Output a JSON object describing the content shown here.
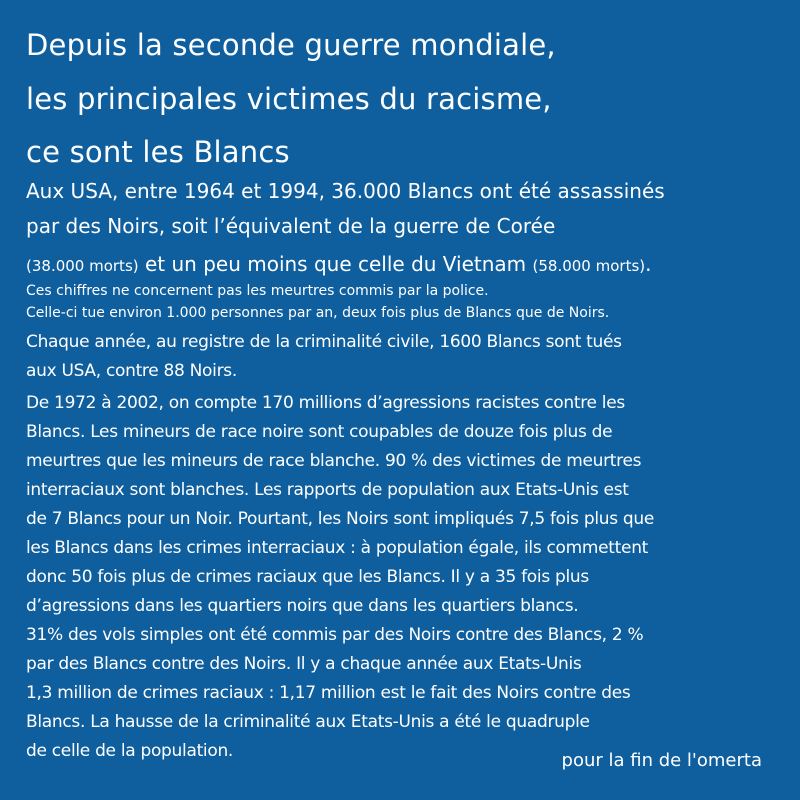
{
  "background_color": "#0f5f9f",
  "title_lines": [
    "Depuis la seconde guerre mondiale,",
    "les principales victimes du racisme,",
    "ce sont les Blancs"
  ],
  "subtitle_lines": [
    "Aux USA, entre 1964 et 1994, 36.000 Blancs ont été assassinés",
    "par des Noirs, soit l’équivalent de la guerre de Corée"
  ],
  "subtitle_line3": {
    "a": "(38.000 morts)",
    "b": " et un peu moins que celle du Vietnam ",
    "c": "(58.000 morts)",
    "d": "."
  },
  "note_lines": [
    "Ces chiffres ne concernent pas les meurtres commis par la police.",
    "Celle-ci tue environ 1.000 personnes par an,  deux fois plus de Blancs que de Noirs."
  ],
  "body_lines": [
    "Chaque année, au registre de la criminalité civile, 1600 Blancs sont tués",
    "aux USA, contre 88 Noirs.",
    "De 1972 à 2002, on compte 170 millions d’agressions racistes contre les",
    "Blancs. Les mineurs de race noire sont coupables de douze fois plus de",
    "meurtres que les mineurs de race blanche. 90 % des victimes de meurtres",
    "interraciaux sont blanches. Les rapports de population aux Etats-Unis est",
    "de 7 Blancs pour un Noir. Pourtant, les Noirs sont impliqués 7,5 fois plus que",
    "les Blancs dans les crimes interraciaux : à population égale, ils commettent",
    "donc 50 fois plus de crimes raciaux que les Blancs. Il y a 35 fois plus",
    "d’agressions dans les quartiers noirs que dans les quartiers blancs.",
    "31% des vols simples ont été commis par des Noirs contre des Blancs, 2 %",
    "par des Blancs contre des Noirs. Il y a chaque année aux Etats-Unis",
    "1,3 million de crimes raciaux : 1,17 million est le fait des Noirs contre des",
    "Blancs. La hausse de la criminalité aux Etats-Unis a été le quadruple",
    "de celle de la population."
  ],
  "footer": "pour la fin de l'omerta"
}
